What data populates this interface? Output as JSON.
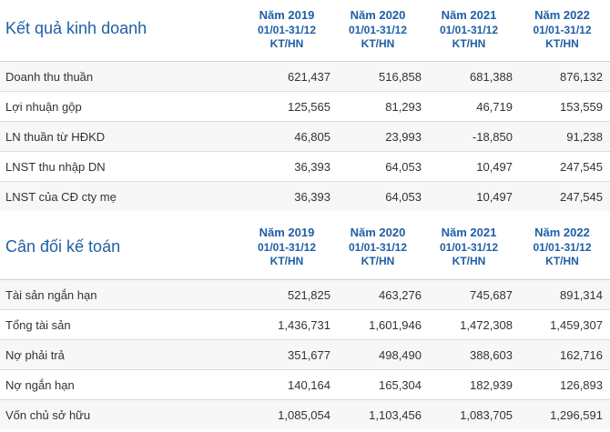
{
  "sections": [
    {
      "title": "Kết quả kinh doanh",
      "columns": [
        {
          "year": "Năm 2019",
          "period": "01/01-31/12",
          "type": "KT/HN"
        },
        {
          "year": "Năm 2020",
          "period": "01/01-31/12",
          "type": "KT/HN"
        },
        {
          "year": "Năm 2021",
          "period": "01/01-31/12",
          "type": "KT/HN"
        },
        {
          "year": "Năm 2022",
          "period": "01/01-31/12",
          "type": "KT/HN"
        }
      ],
      "rows": [
        {
          "label": "Doanh thu thuần",
          "values": [
            "621,437",
            "516,858",
            "681,388",
            "876,132"
          ]
        },
        {
          "label": "Lợi nhuận gộp",
          "values": [
            "125,565",
            "81,293",
            "46,719",
            "153,559"
          ]
        },
        {
          "label": "LN thuần từ HĐKD",
          "values": [
            "46,805",
            "23,993",
            "-18,850",
            "91,238"
          ]
        },
        {
          "label": "LNST thu nhập DN",
          "values": [
            "36,393",
            "64,053",
            "10,497",
            "247,545"
          ]
        },
        {
          "label": "LNST của CĐ cty mẹ",
          "values": [
            "36,393",
            "64,053",
            "10,497",
            "247,545"
          ]
        }
      ]
    },
    {
      "title": "Cân đối kế toán",
      "columns": [
        {
          "year": "Năm 2019",
          "period": "01/01-31/12",
          "type": "KT/HN"
        },
        {
          "year": "Năm 2020",
          "period": "01/01-31/12",
          "type": "KT/HN"
        },
        {
          "year": "Năm 2021",
          "period": "01/01-31/12",
          "type": "KT/HN"
        },
        {
          "year": "Năm 2022",
          "period": "01/01-31/12",
          "type": "KT/HN"
        }
      ],
      "rows": [
        {
          "label": "Tài sản ngắn hạn",
          "values": [
            "521,825",
            "463,276",
            "745,687",
            "891,314"
          ]
        },
        {
          "label": "Tổng tài sản",
          "values": [
            "1,436,731",
            "1,601,946",
            "1,472,308",
            "1,459,307"
          ]
        },
        {
          "label": "Nợ phải trả",
          "values": [
            "351,677",
            "498,490",
            "388,603",
            "162,716"
          ]
        },
        {
          "label": "Nợ ngắn hạn",
          "values": [
            "140,164",
            "165,304",
            "182,939",
            "126,893"
          ]
        },
        {
          "label": "Vốn chủ sở hữu",
          "values": [
            "1,085,054",
            "1,103,456",
            "1,083,705",
            "1,296,591"
          ]
        }
      ]
    }
  ]
}
